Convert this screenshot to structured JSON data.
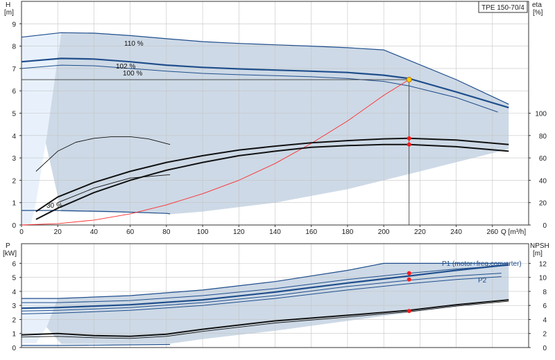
{
  "model_label": "TPE 150-70/4",
  "chart_data": [
    {
      "type": "line",
      "panel": "head_efficiency",
      "x_axis": {
        "label": "Q [m³/h]",
        "range": [
          0,
          280
        ],
        "ticks": [
          0,
          20,
          40,
          60,
          80,
          100,
          120,
          140,
          160,
          180,
          200,
          220,
          240,
          260
        ]
      },
      "y_left": {
        "label": "H",
        "unit": "[m]",
        "range": [
          0,
          10
        ],
        "ticks": [
          0,
          1,
          2,
          3,
          4,
          5,
          6,
          7,
          8,
          9
        ]
      },
      "y_right": {
        "label": "eta",
        "unit": "[%]",
        "range": [
          0,
          200
        ],
        "ticks": [
          0,
          20,
          40,
          60,
          80,
          100
        ]
      },
      "speed_labels": [
        "110 %",
        "102 %",
        "100 %",
        "30 %"
      ],
      "operating_point": {
        "q": 214,
        "h": 6.5
      },
      "series": [
        {
          "axis": "left",
          "style": "envelope",
          "color": "#1f4e8c",
          "x": [
            0,
            22,
            40,
            60,
            80,
            100,
            120,
            140,
            160,
            180,
            200,
            240,
            269
          ],
          "y": [
            8.4,
            8.6,
            8.58,
            8.47,
            8.33,
            8.2,
            8.12,
            8.06,
            8.0,
            7.93,
            7.83,
            6.5,
            5.4
          ]
        },
        {
          "axis": "left",
          "style": "main",
          "color": "#1f4e8c",
          "x": [
            0,
            22,
            40,
            60,
            80,
            100,
            120,
            140,
            160,
            180,
            200,
            214,
            240,
            269
          ],
          "y": [
            7.3,
            7.45,
            7.42,
            7.3,
            7.15,
            7.05,
            6.98,
            6.93,
            6.88,
            6.82,
            6.7,
            6.55,
            5.95,
            5.25
          ]
        },
        {
          "axis": "left",
          "style": "thin",
          "color": "#1f4e8c",
          "x": [
            0,
            22,
            40,
            60,
            80,
            100,
            120,
            140,
            160,
            180,
            200,
            214,
            240,
            263
          ],
          "y": [
            7.0,
            7.15,
            7.12,
            7.0,
            6.88,
            6.78,
            6.72,
            6.68,
            6.63,
            6.55,
            6.42,
            6.22,
            5.7,
            5.05
          ]
        },
        {
          "axis": "left",
          "style": "envelope",
          "color": "#1f4e8c",
          "x": [
            0,
            20,
            50,
            80,
            82
          ],
          "y": [
            0.65,
            0.65,
            0.6,
            0.52,
            0.5
          ]
        },
        {
          "axis": "left",
          "style": "system",
          "color": "#ff2a2a",
          "x": [
            0,
            20,
            40,
            60,
            80,
            100,
            120,
            140,
            160,
            180,
            200,
            214
          ],
          "y": [
            0.0,
            0.06,
            0.22,
            0.5,
            0.9,
            1.4,
            2.0,
            2.75,
            3.65,
            4.65,
            5.8,
            6.5
          ]
        },
        {
          "axis": "right",
          "style": "thin-black",
          "color": "#111111",
          "x": [
            8,
            20,
            30,
            40,
            50,
            60,
            70,
            82
          ],
          "y": [
            48,
            66,
            74,
            77.5,
            79,
            79,
            77,
            72
          ]
        },
        {
          "axis": "right",
          "style": "black",
          "color": "#111111",
          "x": [
            8,
            20,
            40,
            60,
            80,
            100,
            120,
            140,
            160,
            180,
            200,
            214,
            240,
            269
          ],
          "y": [
            12,
            25,
            38,
            48,
            56,
            62,
            67,
            70.5,
            73.5,
            75.5,
            77,
            77.5,
            76,
            72
          ]
        },
        {
          "axis": "right",
          "style": "black",
          "color": "#111111",
          "x": [
            8,
            20,
            40,
            60,
            80,
            100,
            120,
            140,
            160,
            180,
            200,
            214,
            240,
            269
          ],
          "y": [
            5,
            15,
            29,
            40,
            49,
            56,
            62,
            66,
            69.5,
            71,
            72,
            72,
            70,
            66
          ]
        },
        {
          "axis": "right",
          "style": "thin-black",
          "color": "#111111",
          "x": [
            20,
            40,
            60,
            82
          ],
          "y": [
            20,
            33,
            42,
            45
          ]
        }
      ]
    },
    {
      "type": "line",
      "panel": "power_npsh",
      "x_axis": {
        "label": "Q [m³/h]",
        "range": [
          0,
          280
        ],
        "ticks": [
          0,
          20,
          40,
          60,
          80,
          100,
          120,
          140,
          160,
          180,
          200,
          220,
          240,
          260
        ]
      },
      "y_left": {
        "label": "P",
        "unit": "[kW]",
        "range": [
          0,
          7.4
        ],
        "ticks": [
          0,
          1,
          2,
          3,
          4,
          5,
          6
        ]
      },
      "y_right": {
        "label": "NPSH",
        "unit": "[m]",
        "range": [
          0,
          14.8
        ],
        "ticks": [
          0,
          2,
          4,
          6,
          8,
          10,
          12
        ]
      },
      "legend": [
        "P1 (motor+freq.converter)",
        "P2"
      ],
      "series": [
        {
          "name": "P1 (motor+freq.converter)",
          "axis": "left",
          "style": "envelope",
          "color": "#1f4e8c",
          "x": [
            0,
            20,
            60,
            100,
            140,
            180,
            200,
            269
          ],
          "y": [
            3.5,
            3.5,
            3.7,
            4.1,
            4.7,
            5.5,
            6.0,
            6.0
          ]
        },
        {
          "axis": "left",
          "style": "main",
          "color": "#1f4e8c",
          "x": [
            0,
            20,
            60,
            100,
            140,
            180,
            214,
            240,
            269
          ],
          "y": [
            2.8,
            2.85,
            3.05,
            3.4,
            3.95,
            4.6,
            5.1,
            5.5,
            5.9
          ]
        },
        {
          "axis": "left",
          "style": "thin",
          "color": "#1f4e8c",
          "x": [
            0,
            20,
            60,
            100,
            140,
            180,
            214,
            240,
            269
          ],
          "y": [
            3.2,
            3.2,
            3.35,
            3.7,
            4.2,
            4.85,
            5.3,
            5.6,
            5.85
          ]
        },
        {
          "name": "P2",
          "axis": "left",
          "style": "thin",
          "color": "#1f4e8c",
          "x": [
            0,
            20,
            60,
            100,
            140,
            180,
            214,
            240,
            265
          ],
          "y": [
            2.6,
            2.65,
            2.85,
            3.2,
            3.7,
            4.35,
            4.8,
            5.1,
            5.3
          ]
        },
        {
          "axis": "left",
          "style": "thin",
          "color": "#1f4e8c",
          "x": [
            0,
            20,
            60,
            100,
            140,
            180,
            214,
            240,
            265
          ],
          "y": [
            2.4,
            2.45,
            2.65,
            3.0,
            3.5,
            4.1,
            4.55,
            4.85,
            5.05
          ]
        },
        {
          "axis": "left",
          "style": "envelope",
          "color": "#1f4e8c",
          "x": [
            0,
            20,
            50,
            82
          ],
          "y": [
            0.15,
            0.15,
            0.18,
            0.22
          ]
        },
        {
          "axis": "right",
          "style": "black",
          "color": "#111111",
          "x": [
            0,
            20,
            40,
            60,
            80,
            100,
            140,
            180,
            214,
            240,
            269
          ],
          "y": [
            1.8,
            2.0,
            1.7,
            1.6,
            1.9,
            2.6,
            3.8,
            4.6,
            5.3,
            6.1,
            6.8
          ]
        },
        {
          "axis": "right",
          "style": "thin-black",
          "color": "#111111",
          "x": [
            0,
            20,
            40,
            60,
            80,
            100,
            140,
            180,
            214,
            240,
            269
          ],
          "y": [
            1.5,
            1.6,
            1.4,
            1.3,
            1.6,
            2.3,
            3.5,
            4.35,
            5.1,
            5.9,
            6.6
          ]
        }
      ],
      "markers": [
        {
          "q": 214,
          "p": 5.3
        },
        {
          "q": 214,
          "p": 4.85
        },
        {
          "q": 214,
          "p": 2.6
        }
      ]
    }
  ]
}
